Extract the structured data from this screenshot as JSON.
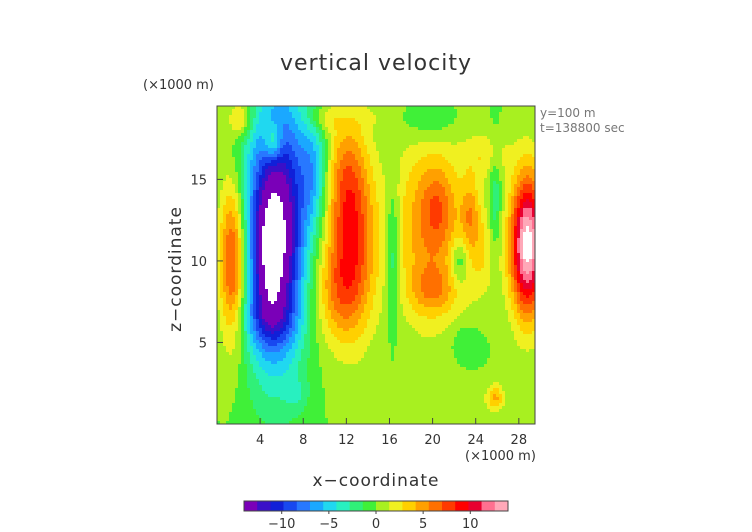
{
  "chart_data": {
    "type": "heatmap",
    "title": "vertical velocity",
    "xlabel": "x−coordinate",
    "ylabel": "z−coordinate",
    "x_unit": "(×1000 m)",
    "y_unit": "(×1000 m)",
    "xlim": [
      0,
      29.5
    ],
    "ylim": [
      0,
      19.5
    ],
    "x_ticks": [
      4,
      8,
      12,
      16,
      20,
      24,
      28
    ],
    "y_ticks": [
      5,
      10,
      15
    ],
    "x_tick_labels": [
      "4",
      "8",
      "12",
      "16",
      "20",
      "24",
      "28"
    ],
    "y_tick_labels": [
      "5",
      "10",
      "15"
    ],
    "info_lines": [
      "y=100 m",
      "t=138800 sec"
    ],
    "grid": false,
    "colorbar": {
      "position": "bottom",
      "range": [
        -14,
        14
      ],
      "ticks": [
        -10,
        -5,
        0,
        5,
        10
      ],
      "tick_labels": [
        "−10",
        "−5",
        "0",
        "5",
        "10"
      ],
      "colors": [
        "#7a00b8",
        "#3a10c8",
        "#1020d8",
        "#1848f0",
        "#2878ff",
        "#1aa8ff",
        "#20d8f0",
        "#28f0c0",
        "#30f078",
        "#40f038",
        "#a8f020",
        "#f0f020",
        "#ffd000",
        "#ffa000",
        "#ff7000",
        "#ff3a00",
        "#ff0000",
        "#e80030",
        "#ff7090",
        "#ffa8b8"
      ]
    },
    "features": [
      {
        "x": 2.5,
        "z": 15.5,
        "sx": 1.0,
        "sz": 3.0,
        "w": -0.35
      },
      {
        "x": 5.0,
        "z": 11.5,
        "sx": 1.9,
        "sz": 5.5,
        "w": -12.0
      },
      {
        "x": 5.0,
        "z": 10.5,
        "sx": 0.9,
        "sz": 2.8,
        "w": -6.0
      },
      {
        "x": 6.7,
        "z": 13.0,
        "sx": 1.4,
        "sz": 5.5,
        "w": -5.0
      },
      {
        "x": 9.0,
        "z": 15.5,
        "sx": 0.9,
        "sz": 2.5,
        "w": -5.0
      },
      {
        "x": 4.6,
        "z": 6.5,
        "sx": 2.0,
        "sz": 1.2,
        "w": -3.0
      },
      {
        "x": 1.5,
        "z": 10.0,
        "sx": 0.9,
        "sz": 3.5,
        "w": 9.0
      },
      {
        "x": 2.2,
        "z": 18.7,
        "sx": 0.8,
        "sz": 0.8,
        "w": 4.0
      },
      {
        "x": 5.2,
        "z": 17.3,
        "sx": 0.6,
        "sz": 0.8,
        "w": 5.0
      },
      {
        "x": 9.8,
        "z": 18.7,
        "sx": 1.0,
        "sz": 0.6,
        "w": 2.5
      },
      {
        "x": 12.5,
        "z": 11.0,
        "sx": 1.6,
        "sz": 3.8,
        "w": 8.0
      },
      {
        "x": 12.0,
        "z": 15.5,
        "sx": 1.3,
        "sz": 2.5,
        "w": 3.5
      },
      {
        "x": 11.0,
        "z": 8.0,
        "sx": 1.5,
        "sz": 2.0,
        "w": 3.0
      },
      {
        "x": 16.3,
        "z": 10.5,
        "sx": 0.45,
        "sz": 3.0,
        "w": -3.5
      },
      {
        "x": 19.8,
        "z": 12.0,
        "sx": 2.3,
        "sz": 4.0,
        "w": 5.5
      },
      {
        "x": 20.5,
        "z": 13.3,
        "sx": 1.0,
        "sz": 1.5,
        "w": 2.5
      },
      {
        "x": 20.0,
        "z": 8.2,
        "sx": 1.5,
        "sz": 1.0,
        "w": 3.0
      },
      {
        "x": 22.5,
        "z": 10.0,
        "sx": 0.6,
        "sz": 1.0,
        "w": -3.5
      },
      {
        "x": 23.5,
        "z": 13.0,
        "sx": 0.6,
        "sz": 1.5,
        "w": 3.5
      },
      {
        "x": 24.5,
        "z": 10.5,
        "sx": 1.2,
        "sz": 2.0,
        "w": 2.5
      },
      {
        "x": 25.8,
        "z": 13.5,
        "sx": 0.4,
        "sz": 2.5,
        "w": -3.0
      },
      {
        "x": 28.8,
        "z": 11.0,
        "sx": 1.1,
        "sz": 3.0,
        "w": 15.0
      },
      {
        "x": 25.8,
        "z": 1.6,
        "sx": 0.6,
        "sz": 0.6,
        "w": 4.5
      },
      {
        "x": 19.8,
        "z": 18.5,
        "sx": 1.8,
        "sz": 1.0,
        "w": -2.0
      },
      {
        "x": 7.5,
        "z": 1.8,
        "sx": 0.8,
        "sz": 0.8,
        "w": -1.6
      },
      {
        "x": 23.0,
        "z": 5.0,
        "sx": 1.0,
        "sz": 0.8,
        "w": -1.5
      },
      {
        "x": 25.0,
        "z": 16.5,
        "sx": 1.5,
        "sz": 1.0,
        "w": 2.5
      },
      {
        "x": 14.0,
        "z": 18.8,
        "sx": 1.0,
        "sz": 0.5,
        "w": 1.0
      }
    ]
  }
}
